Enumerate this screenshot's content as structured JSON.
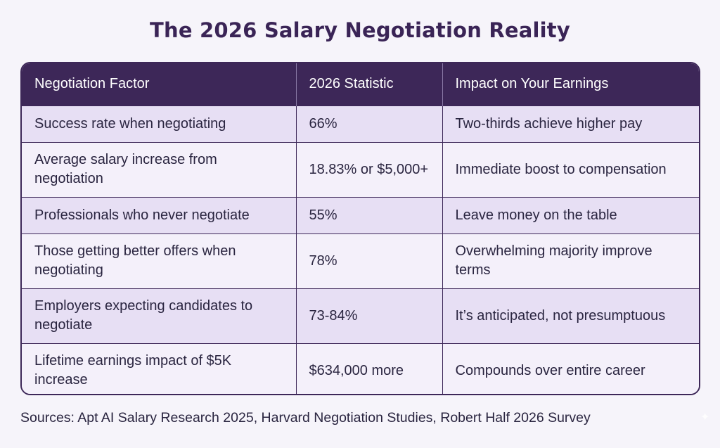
{
  "title": "The 2026 Salary Negotiation Reality",
  "table": {
    "headers": [
      "Negotiation Factor",
      "2026 Statistic",
      "Impact on Your Earnings"
    ],
    "rows": [
      [
        "Success rate when negotiating",
        "66%",
        "Two-thirds achieve higher pay"
      ],
      [
        "Average salary increase from negotiation",
        "18.83% or $5,000+",
        "Immediate boost to compensation"
      ],
      [
        "Professionals who never negotiate",
        "55%",
        "Leave money on the table"
      ],
      [
        "Those getting better offers when negotiating",
        "78%",
        "Overwhelming majority improve terms"
      ],
      [
        "Employers expecting candidates to negotiate",
        "73-84%",
        "It’s anticipated, not presumptuous"
      ],
      [
        "Lifetime earnings impact of $5K increase",
        "$634,000 more",
        "Compounds over entire career"
      ]
    ]
  },
  "sources": "Sources: Apt AI Salary Research 2025, Harvard Negotiation Studies, Robert Half 2026 Survey",
  "colors": {
    "header_bg": "#3d2758",
    "title": "#3a2456",
    "row_lavender": "#e7dff4",
    "row_light": "#f4f0fa"
  },
  "icons": [
    "sparkle-icon"
  ]
}
